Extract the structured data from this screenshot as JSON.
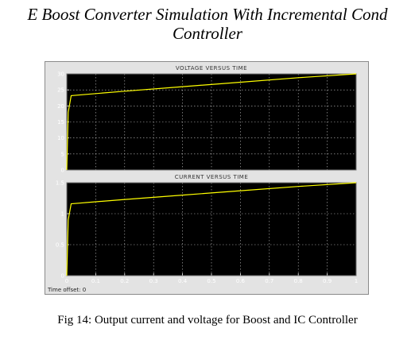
{
  "heading": {
    "line1": "E Boost Converter Simulation With Incremental Cond",
    "line2": "Controller"
  },
  "scope": {
    "time_offset_label": "Time offset: 0"
  },
  "caption": "Fig 14: Output current and voltage for Boost and IC Controller",
  "colors": {
    "plot_background": "#000000",
    "trace": "#ffff00",
    "grid": "#ffffff",
    "tick_text": "#ffffff",
    "panel": "#e3e3e3"
  },
  "chart_data": [
    {
      "type": "line",
      "title": "VOLTAGE VERSUS TIME",
      "xlabel": "",
      "ylabel": "",
      "xlim": [
        0,
        1
      ],
      "ylim": [
        0,
        30
      ],
      "yticks": [
        "0",
        "5",
        "10",
        "15",
        "20",
        "25",
        "30"
      ],
      "xticks": [],
      "grid": true,
      "series": [
        {
          "x": [
            0,
            0.005,
            0.015,
            0.2,
            0.4,
            0.6,
            0.8,
            1.0
          ],
          "y": [
            0,
            18,
            23.2,
            24.6,
            26.0,
            27.4,
            28.8,
            30.0
          ]
        }
      ]
    },
    {
      "type": "line",
      "title": "CURRENT VERSUS TIME",
      "xlabel": "",
      "ylabel": "",
      "xlim": [
        0,
        1
      ],
      "ylim": [
        0,
        1.5
      ],
      "yticks": [
        "0",
        "0.5",
        "1",
        "1.5"
      ],
      "xticks": [
        "0",
        "0.1",
        "0.2",
        "0.3",
        "0.4",
        "0.5",
        "0.6",
        "0.7",
        "0.8",
        "0.9",
        "1"
      ],
      "grid": true,
      "series": [
        {
          "x": [
            0,
            0.005,
            0.015,
            0.2,
            0.4,
            0.6,
            0.8,
            1.0
          ],
          "y": [
            0,
            0.9,
            1.16,
            1.23,
            1.3,
            1.37,
            1.44,
            1.5
          ]
        }
      ]
    }
  ]
}
